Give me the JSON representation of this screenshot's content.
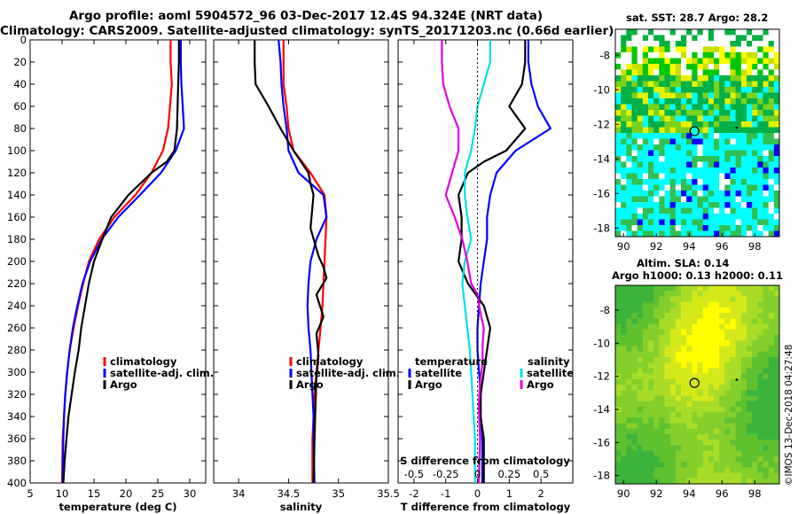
{
  "header": {
    "title_line1": "Argo profile: aoml 5904572_96 03-Dec-2017 12.4S 94.324E (NRT data)",
    "title_line2": "Climatology: CARS2009. Satellite-adjusted climatology: synTS_20171203.nc (0.66d earlier)"
  },
  "colors": {
    "climatology": "#ff0000",
    "satellite": "#0000ff",
    "argo": "#000000",
    "sat_salinity": "#00e0e0",
    "argo_salinity": "#e000e0"
  },
  "chart_data": [
    {
      "type": "line",
      "id": "temperature",
      "xlabel": "temperature (deg C)",
      "ylabel": "",
      "xlim": [
        5,
        32.5
      ],
      "ylim": [
        400,
        0
      ],
      "xticks": [
        "5",
        "10",
        "15",
        "20",
        "25",
        "30"
      ],
      "xtick_values": [
        5,
        10,
        15,
        20,
        25,
        30
      ],
      "yticks": [
        "0",
        "20",
        "40",
        "60",
        "80",
        "100",
        "120",
        "140",
        "160",
        "180",
        "200",
        "220",
        "240",
        "260",
        "280",
        "300",
        "320",
        "340",
        "360",
        "380",
        "400"
      ],
      "legend": [
        "climatology",
        "satellite-adj. clim.",
        "Argo"
      ],
      "series": [
        {
          "name": "climatology",
          "color": "climatology",
          "x": [
            27,
            27,
            27.2,
            26.9,
            26.6,
            25.8,
            24,
            21.5,
            18.2,
            15.8,
            14.2,
            13.3,
            12.5,
            11.8,
            11.2,
            10.8,
            10.5,
            10.3,
            10.1,
            10
          ],
          "y": [
            0,
            20,
            40,
            60,
            80,
            100,
            120,
            140,
            160,
            180,
            200,
            220,
            240,
            260,
            280,
            300,
            320,
            340,
            360,
            400
          ]
        },
        {
          "name": "satellite-adj. clim.",
          "color": "satellite",
          "x": [
            28.6,
            28.6,
            28.7,
            28.9,
            29.1,
            27.8,
            25.5,
            22.2,
            18.8,
            16.2,
            14.4,
            13.2,
            12.4,
            11.7,
            11.2,
            10.8,
            10.5,
            10.3,
            10.2,
            10.1
          ],
          "y": [
            0,
            20,
            40,
            60,
            80,
            100,
            120,
            140,
            160,
            180,
            200,
            220,
            240,
            260,
            280,
            300,
            320,
            340,
            360,
            400
          ]
        },
        {
          "name": "Argo",
          "color": "argo",
          "x": [
            28.3,
            28.3,
            28.2,
            28.1,
            28,
            27.6,
            26.4,
            24,
            20.4,
            17.7,
            16.3,
            15,
            14.2,
            13.6,
            13,
            12.6,
            12,
            11.5,
            11,
            10.7,
            10.4,
            10.2
          ],
          "y": [
            0,
            20,
            40,
            60,
            80,
            100,
            110,
            120,
            140,
            160,
            180,
            200,
            220,
            240,
            260,
            280,
            300,
            320,
            340,
            360,
            380,
            400
          ]
        }
      ]
    },
    {
      "type": "line",
      "id": "salinity",
      "xlabel": "salinity",
      "ylabel": "",
      "xlim": [
        33.75,
        35.5
      ],
      "ylim": [
        400,
        0
      ],
      "xticks": [
        "34",
        "34.5",
        "35",
        "35.5"
      ],
      "xtick_values": [
        34,
        34.5,
        35,
        35.5
      ],
      "legend": [
        "climatology",
        "satellite-adj. clim.",
        "Argo"
      ],
      "series": [
        {
          "name": "climatology",
          "color": "climatology",
          "x": [
            34.45,
            34.45,
            34.45,
            34.48,
            34.5,
            34.55,
            34.72,
            34.86,
            34.88,
            34.87,
            34.86,
            34.85,
            34.84,
            34.82,
            34.8,
            34.78,
            34.76,
            34.75,
            34.74,
            34.74
          ],
          "y": [
            0,
            20,
            40,
            60,
            80,
            100,
            120,
            140,
            160,
            180,
            200,
            220,
            240,
            260,
            280,
            300,
            320,
            340,
            360,
            400
          ]
        },
        {
          "name": "satellite-adj. clim.",
          "color": "satellite",
          "x": [
            34.4,
            34.42,
            34.43,
            34.45,
            34.48,
            34.5,
            34.6,
            34.85,
            34.88,
            34.78,
            34.72,
            34.7,
            34.69,
            34.7,
            34.72,
            34.73,
            34.74,
            34.75,
            34.75,
            34.76
          ],
          "y": [
            0,
            20,
            40,
            60,
            80,
            100,
            120,
            140,
            160,
            180,
            200,
            220,
            240,
            260,
            280,
            300,
            320,
            340,
            360,
            400
          ]
        },
        {
          "name": "Argo",
          "color": "argo",
          "x": [
            34.16,
            34.16,
            34.17,
            34.3,
            34.42,
            34.55,
            34.7,
            34.72,
            34.75,
            34.72,
            34.8,
            34.85,
            34.88,
            34.78,
            34.85,
            34.78,
            34.8,
            34.78,
            34.77,
            34.76,
            34.75
          ],
          "y": [
            0,
            20,
            40,
            60,
            80,
            100,
            120,
            130,
            140,
            170,
            195,
            205,
            215,
            230,
            250,
            265,
            285,
            305,
            330,
            360,
            400
          ]
        }
      ]
    },
    {
      "type": "line",
      "id": "difference",
      "xlabel": "T difference from climatology",
      "ylabel": "",
      "xlim": [
        -2.5,
        3
      ],
      "ylim": [
        400,
        0
      ],
      "xticks": [
        "-2",
        "-1",
        "0",
        "1",
        "2"
      ],
      "xtick_values": [
        -2,
        -1,
        0,
        1,
        2
      ],
      "top_axis_label": "S difference from climatology",
      "top_xticks": [
        "-0.5",
        "-0.25",
        "0",
        "0.25",
        "0.5"
      ],
      "top_xtick_values": [
        -0.5,
        -0.25,
        0,
        0.25,
        0.5
      ],
      "legend_temperature": {
        "heading": "temperature",
        "items": [
          "satellite",
          "Argo"
        ]
      },
      "legend_salinity": {
        "heading": "salinity",
        "items": [
          "satellite",
          "Argo"
        ]
      },
      "series": [
        {
          "name": "temperature satellite",
          "color": "satellite",
          "x": [
            1.6,
            1.6,
            1.7,
            1.9,
            2.3,
            1.2,
            0.6,
            0.4,
            0.3,
            0.3,
            0.2,
            0.1,
            0.05,
            0,
            0,
            0.05,
            0.1,
            0.1,
            0.15,
            0.15
          ],
          "y": [
            0,
            20,
            40,
            60,
            80,
            100,
            120,
            140,
            160,
            180,
            200,
            220,
            240,
            260,
            280,
            300,
            320,
            340,
            360,
            400
          ]
        },
        {
          "name": "temperature Argo",
          "color": "argo",
          "x": [
            1.5,
            1.5,
            1.4,
            1,
            1.5,
            0.9,
            0.2,
            -0.3,
            -0.6,
            -0.5,
            -0.5,
            -0.6,
            -0.3,
            0.2,
            0.4,
            0.3,
            0.2,
            0.1,
            0.1,
            0.2,
            0.2
          ],
          "y": [
            0,
            20,
            40,
            60,
            80,
            100,
            110,
            120,
            140,
            160,
            180,
            200,
            220,
            240,
            260,
            280,
            300,
            320,
            340,
            360,
            400
          ]
        },
        {
          "name": "salinity satellite",
          "color": "sat_salinity",
          "x": [
            0.1,
            0.1,
            0.05,
            0,
            -0.02,
            -0.05,
            -0.1,
            -0.1,
            -0.08,
            -0.05,
            -0.1,
            -0.12,
            -0.1,
            -0.08,
            -0.06,
            -0.05,
            -0.04,
            -0.03,
            -0.02,
            -0.02
          ],
          "y": [
            0,
            20,
            40,
            60,
            80,
            100,
            120,
            140,
            160,
            180,
            200,
            220,
            240,
            260,
            280,
            300,
            320,
            340,
            360,
            400
          ]
        },
        {
          "name": "salinity Argo",
          "color": "argo_salinity",
          "x": [
            -0.28,
            -0.28,
            -0.27,
            -0.22,
            -0.15,
            -0.15,
            -0.2,
            -0.25,
            -0.18,
            -0.12,
            -0.08,
            -0.05,
            0,
            0.02,
            0.05,
            0.04,
            0.04,
            0.02,
            0.01,
            0.02,
            0.01
          ],
          "y": [
            0,
            20,
            40,
            60,
            80,
            100,
            120,
            140,
            160,
            180,
            200,
            220,
            230,
            245,
            260,
            275,
            290,
            310,
            330,
            360,
            400
          ]
        }
      ]
    },
    {
      "type": "heatmap",
      "id": "sst-map",
      "title": "sat. SST: 28.7 Argo: 28.2",
      "xlim": [
        89.5,
        99.5
      ],
      "ylim": [
        -18.5,
        -6.5
      ],
      "xticks": [
        "90",
        "92",
        "94",
        "96",
        "98"
      ],
      "xtick_values": [
        90,
        92,
        94,
        96,
        98
      ],
      "yticks": [
        "-8",
        "-10",
        "-12",
        "-14",
        "-16",
        "-18"
      ],
      "ytick_values": [
        -8,
        -10,
        -12,
        -14,
        -16,
        -18
      ],
      "argo_position": {
        "lon": 94.324,
        "lat": -12.4
      },
      "palette": [
        "#ffffff",
        "#ffff00",
        "#c8e000",
        "#78c800",
        "#32b432",
        "#00a050",
        "#00ffff",
        "#0000ff"
      ]
    },
    {
      "type": "heatmap",
      "id": "sla-map",
      "title": "Altim. SLA: 0.14",
      "subtitle": "Argo h1000: 0.13 h2000: 0.11",
      "xlim": [
        89.5,
        99.5
      ],
      "ylim": [
        -18.5,
        -6.5
      ],
      "xticks": [
        "90",
        "92",
        "94",
        "96",
        "98"
      ],
      "xtick_values": [
        90,
        92,
        94,
        96,
        98
      ],
      "yticks": [
        "-8",
        "-10",
        "-12",
        "-14",
        "-16",
        "-18"
      ],
      "ytick_values": [
        -8,
        -10,
        -12,
        -14,
        -16,
        -18
      ],
      "argo_position": {
        "lon": 94.324,
        "lat": -12.4
      }
    }
  ],
  "footer": {
    "stamp": "©IMOS 13-Dec-2018 04:27:48"
  }
}
